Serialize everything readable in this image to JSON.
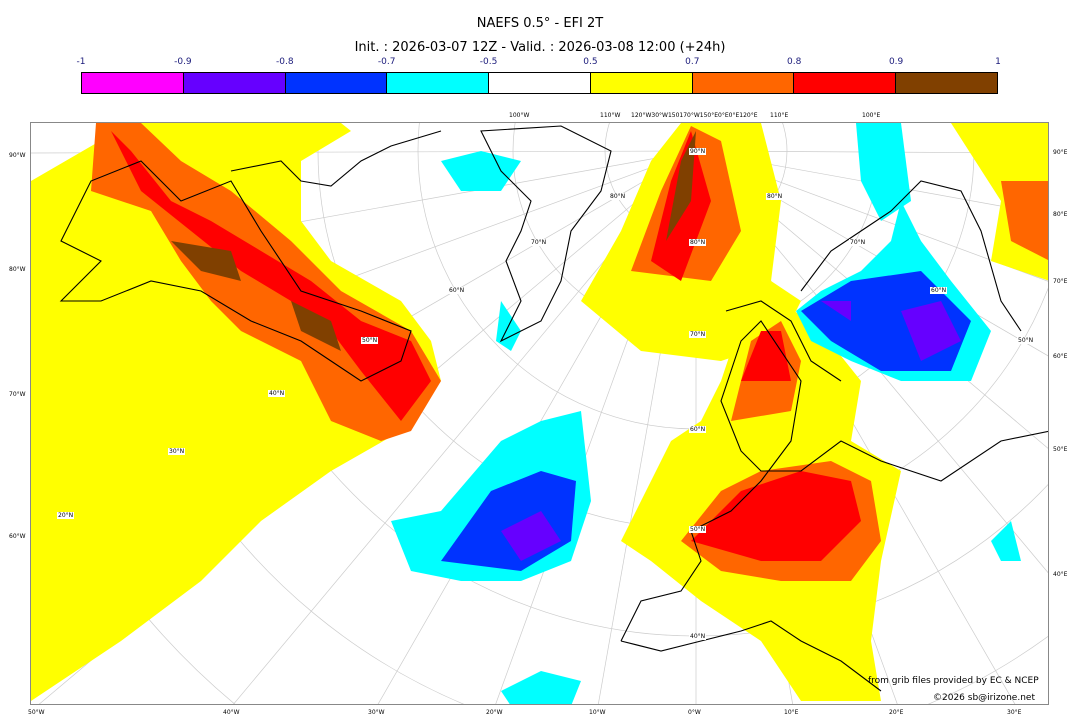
{
  "title": "NAEFS 0.5° - EFI 2T",
  "subtitle": "Init. : 2026-03-07 12Z - Valid. : 2026-03-08 12:00 (+24h)",
  "colorbar": {
    "ticks": [
      "-1",
      "-0.9",
      "-0.8",
      "-0.7",
      "-0.5",
      "0.5",
      "0.7",
      "0.8",
      "0.9",
      "1"
    ],
    "colors": [
      "#ff00ff",
      "#6600ff",
      "#0033ff",
      "#00ffff",
      "#ffffff",
      "#ffff00",
      "#ff6600",
      "#ff0000",
      "#804000"
    ]
  },
  "axes": {
    "left": [
      "90°W",
      "80°W",
      "70°W",
      "60°W"
    ],
    "right": [
      "90°E",
      "80°E",
      "70°E",
      "60°E",
      "50°E",
      "40°E"
    ],
    "bottom": [
      "50°W",
      "40°W",
      "30°W",
      "20°W",
      "10°W",
      "0°W",
      "10°E",
      "20°E",
      "30°E"
    ],
    "top": [
      "100°W",
      "110°W",
      "120°W30°W150170°W150°E0°E0°E120°E",
      "110°E",
      "100°E"
    ],
    "interior": [
      "90°N",
      "80°N",
      "70°N",
      "60°N",
      "50°N",
      "40°N",
      "60°N",
      "50°N",
      "40°N",
      "30°N",
      "20°N",
      "70°N",
      "80°N",
      "80°N",
      "70°N",
      "60°N",
      "50°N"
    ]
  },
  "footer": {
    "source": "from grib files provided by EC & NCEP",
    "copyright": "©2026 sb@irizone.net"
  }
}
